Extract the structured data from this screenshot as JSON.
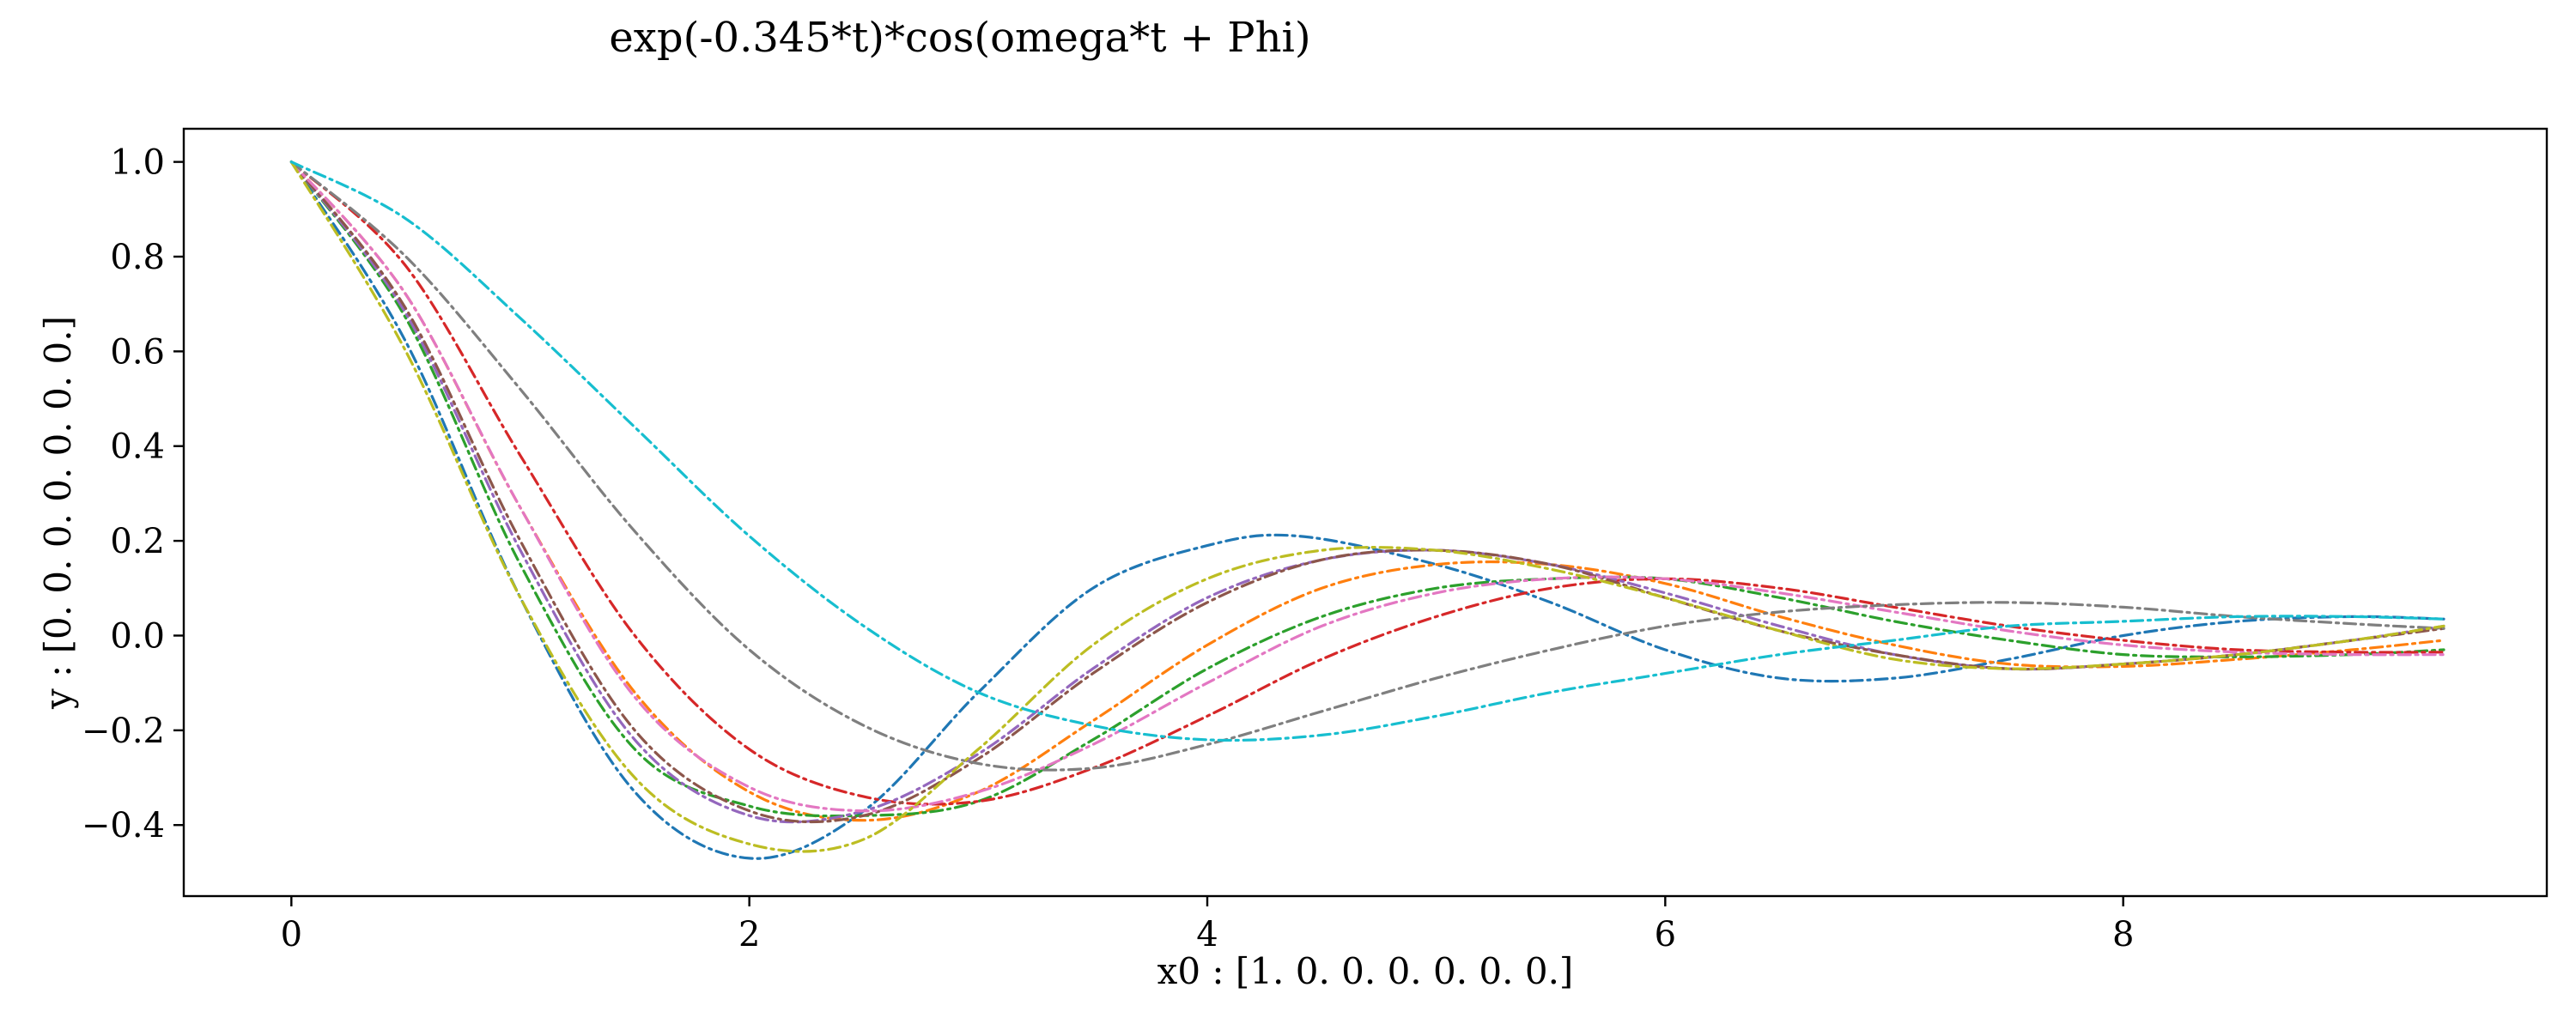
{
  "chart_data": {
    "type": "line",
    "title": "exp(-0.345*t)*cos(omega*t + Phi)",
    "xlabel": "x0 : [1. 0. 0. 0. 0. 0. 0.]",
    "ylabel": "y : [0. 0. 0. 0. 0. 0. 0.]",
    "xlim": [
      -0.47,
      9.85
    ],
    "ylim": [
      -0.55,
      1.07
    ],
    "xticks": [
      0,
      2,
      4,
      6,
      8
    ],
    "xtick_labels": [
      "0",
      "2",
      "4",
      "6",
      "8"
    ],
    "yticks": [
      1.0,
      0.8,
      0.6,
      0.4,
      0.2,
      0.0,
      -0.2,
      -0.4
    ],
    "ytick_labels": [
      "1.0",
      "0.8",
      "0.6",
      "0.4",
      "0.2",
      "0.0",
      "−0.2",
      "−0.4"
    ],
    "grid": false,
    "line_style": "dash-dot",
    "series": [
      {
        "color": "#1f77b4",
        "points": [
          [
            0,
            1.0
          ],
          [
            0.5,
            0.62
          ],
          [
            1.0,
            0.08
          ],
          [
            1.5,
            -0.33
          ],
          [
            2.0,
            -0.47
          ],
          [
            2.5,
            -0.37
          ],
          [
            3.0,
            -0.12
          ],
          [
            3.5,
            0.1
          ],
          [
            4.0,
            0.19
          ],
          [
            4.4,
            0.21
          ],
          [
            5.0,
            0.15
          ],
          [
            5.5,
            0.07
          ],
          [
            6.0,
            -0.03
          ],
          [
            6.5,
            -0.09
          ],
          [
            7.0,
            -0.09
          ],
          [
            7.5,
            -0.05
          ],
          [
            8.0,
            0.0
          ],
          [
            8.5,
            0.03
          ],
          [
            9.0,
            0.04
          ],
          [
            9.4,
            0.035
          ]
        ]
      },
      {
        "color": "#ff7f0e",
        "points": [
          [
            0,
            1.0
          ],
          [
            0.5,
            0.72
          ],
          [
            1.0,
            0.27
          ],
          [
            1.5,
            -0.12
          ],
          [
            2.0,
            -0.33
          ],
          [
            2.5,
            -0.39
          ],
          [
            3.0,
            -0.33
          ],
          [
            3.5,
            -0.18
          ],
          [
            4.0,
            -0.02
          ],
          [
            4.5,
            0.1
          ],
          [
            5.0,
            0.15
          ],
          [
            5.5,
            0.15
          ],
          [
            6.0,
            0.11
          ],
          [
            6.5,
            0.04
          ],
          [
            7.0,
            -0.02
          ],
          [
            7.5,
            -0.06
          ],
          [
            8.0,
            -0.065
          ],
          [
            8.5,
            -0.05
          ],
          [
            9.0,
            -0.03
          ],
          [
            9.4,
            -0.01
          ]
        ]
      },
      {
        "color": "#2ca02c",
        "points": [
          [
            0,
            1.0
          ],
          [
            0.5,
            0.67
          ],
          [
            1.0,
            0.15
          ],
          [
            1.5,
            -0.24
          ],
          [
            2.0,
            -0.36
          ],
          [
            2.5,
            -0.38
          ],
          [
            3.0,
            -0.35
          ],
          [
            3.5,
            -0.22
          ],
          [
            4.0,
            -0.07
          ],
          [
            4.5,
            0.04
          ],
          [
            5.0,
            0.1
          ],
          [
            5.5,
            0.12
          ],
          [
            6.0,
            0.12
          ],
          [
            6.5,
            0.08
          ],
          [
            7.0,
            0.03
          ],
          [
            7.5,
            -0.01
          ],
          [
            8.0,
            -0.04
          ],
          [
            8.5,
            -0.045
          ],
          [
            9.0,
            -0.04
          ],
          [
            9.4,
            -0.03
          ]
        ]
      },
      {
        "color": "#d62728",
        "points": [
          [
            0,
            1.0
          ],
          [
            0.5,
            0.78
          ],
          [
            1.0,
            0.38
          ],
          [
            1.5,
            0.0
          ],
          [
            2.0,
            -0.24
          ],
          [
            2.5,
            -0.34
          ],
          [
            3.0,
            -0.35
          ],
          [
            3.5,
            -0.28
          ],
          [
            4.0,
            -0.17
          ],
          [
            4.5,
            -0.05
          ],
          [
            5.0,
            0.04
          ],
          [
            5.5,
            0.1
          ],
          [
            6.0,
            0.12
          ],
          [
            6.5,
            0.1
          ],
          [
            7.0,
            0.06
          ],
          [
            7.5,
            0.02
          ],
          [
            8.0,
            -0.01
          ],
          [
            8.5,
            -0.03
          ],
          [
            9.0,
            -0.035
          ],
          [
            9.4,
            -0.035
          ]
        ]
      },
      {
        "color": "#9467bd",
        "points": [
          [
            0,
            1.0
          ],
          [
            0.5,
            0.68
          ],
          [
            1.0,
            0.18
          ],
          [
            1.5,
            -0.22
          ],
          [
            2.0,
            -0.38
          ],
          [
            2.5,
            -0.37
          ],
          [
            3.0,
            -0.25
          ],
          [
            3.5,
            -0.07
          ],
          [
            4.0,
            0.08
          ],
          [
            4.5,
            0.16
          ],
          [
            5.0,
            0.18
          ],
          [
            5.5,
            0.15
          ],
          [
            6.0,
            0.09
          ],
          [
            6.5,
            0.02
          ],
          [
            7.0,
            -0.04
          ],
          [
            7.5,
            -0.07
          ],
          [
            8.0,
            -0.06
          ],
          [
            8.5,
            -0.04
          ],
          [
            9.0,
            -0.01
          ],
          [
            9.4,
            0.02
          ]
        ]
      },
      {
        "color": "#8c564b",
        "points": [
          [
            0,
            1.0
          ],
          [
            0.5,
            0.69
          ],
          [
            1.0,
            0.2
          ],
          [
            1.5,
            -0.2
          ],
          [
            2.0,
            -0.37
          ],
          [
            2.5,
            -0.38
          ],
          [
            3.0,
            -0.26
          ],
          [
            3.5,
            -0.08
          ],
          [
            4.0,
            0.07
          ],
          [
            4.5,
            0.16
          ],
          [
            5.0,
            0.18
          ],
          [
            5.5,
            0.15
          ],
          [
            6.0,
            0.08
          ],
          [
            6.5,
            0.01
          ],
          [
            7.0,
            -0.04
          ],
          [
            7.5,
            -0.07
          ],
          [
            8.0,
            -0.06
          ],
          [
            8.5,
            -0.04
          ],
          [
            9.0,
            -0.01
          ],
          [
            9.4,
            0.015
          ]
        ]
      },
      {
        "color": "#e377c2",
        "points": [
          [
            0,
            1.0
          ],
          [
            0.5,
            0.72
          ],
          [
            1.0,
            0.27
          ],
          [
            1.5,
            -0.13
          ],
          [
            2.0,
            -0.32
          ],
          [
            2.5,
            -0.37
          ],
          [
            3.0,
            -0.33
          ],
          [
            3.5,
            -0.23
          ],
          [
            4.0,
            -0.1
          ],
          [
            4.5,
            0.02
          ],
          [
            5.0,
            0.09
          ],
          [
            5.5,
            0.12
          ],
          [
            6.0,
            0.12
          ],
          [
            6.5,
            0.09
          ],
          [
            7.0,
            0.05
          ],
          [
            7.5,
            0.01
          ],
          [
            8.0,
            -0.02
          ],
          [
            8.5,
            -0.035
          ],
          [
            9.0,
            -0.04
          ],
          [
            9.4,
            -0.04
          ]
        ]
      },
      {
        "color": "#7f7f7f",
        "points": [
          [
            0,
            1.0
          ],
          [
            0.5,
            0.8
          ],
          [
            1.0,
            0.52
          ],
          [
            1.5,
            0.22
          ],
          [
            2.0,
            -0.03
          ],
          [
            2.5,
            -0.19
          ],
          [
            3.0,
            -0.27
          ],
          [
            3.5,
            -0.28
          ],
          [
            4.0,
            -0.23
          ],
          [
            4.5,
            -0.16
          ],
          [
            5.0,
            -0.09
          ],
          [
            5.5,
            -0.03
          ],
          [
            6.0,
            0.02
          ],
          [
            6.5,
            0.05
          ],
          [
            7.0,
            0.065
          ],
          [
            7.5,
            0.07
          ],
          [
            8.0,
            0.06
          ],
          [
            8.5,
            0.04
          ],
          [
            9.0,
            0.025
          ],
          [
            9.4,
            0.015
          ]
        ]
      },
      {
        "color": "#bcbd22",
        "points": [
          [
            0,
            1.0
          ],
          [
            0.5,
            0.6
          ],
          [
            1.0,
            0.08
          ],
          [
            1.5,
            -0.3
          ],
          [
            2.0,
            -0.44
          ],
          [
            2.5,
            -0.43
          ],
          [
            3.0,
            -0.24
          ],
          [
            3.5,
            -0.02
          ],
          [
            4.0,
            0.12
          ],
          [
            4.5,
            0.18
          ],
          [
            5.0,
            0.18
          ],
          [
            5.5,
            0.14
          ],
          [
            6.0,
            0.08
          ],
          [
            6.5,
            0.01
          ],
          [
            7.0,
            -0.05
          ],
          [
            7.5,
            -0.07
          ],
          [
            8.0,
            -0.06
          ],
          [
            8.5,
            -0.04
          ],
          [
            9.0,
            -0.01
          ],
          [
            9.4,
            0.02
          ]
        ]
      },
      {
        "color": "#17becf",
        "points": [
          [
            0,
            1.0
          ],
          [
            0.5,
            0.88
          ],
          [
            1.0,
            0.67
          ],
          [
            1.5,
            0.44
          ],
          [
            2.0,
            0.21
          ],
          [
            2.5,
            0.02
          ],
          [
            3.0,
            -0.12
          ],
          [
            3.5,
            -0.19
          ],
          [
            4.0,
            -0.22
          ],
          [
            4.5,
            -0.21
          ],
          [
            5.0,
            -0.17
          ],
          [
            5.5,
            -0.12
          ],
          [
            6.0,
            -0.08
          ],
          [
            6.5,
            -0.04
          ],
          [
            7.0,
            -0.01
          ],
          [
            7.5,
            0.02
          ],
          [
            8.0,
            0.03
          ],
          [
            8.5,
            0.04
          ],
          [
            9.0,
            0.04
          ],
          [
            9.4,
            0.035
          ]
        ]
      }
    ]
  }
}
